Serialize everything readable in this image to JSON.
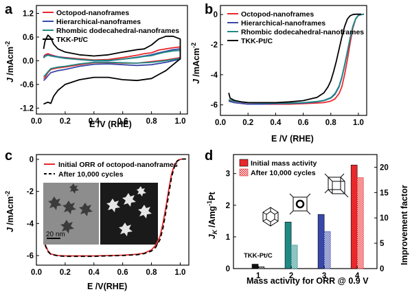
{
  "panels": {
    "a": "a",
    "b": "b",
    "c": "c",
    "d": "d"
  },
  "colors": {
    "octopod": "#e8282b",
    "hierarchical": "#3848a8",
    "rhombic": "#1f8a84",
    "tkk": "#000000"
  },
  "chart_data": [
    {
      "id": "a",
      "type": "line",
      "xlabel": "E /V (RHE)",
      "ylabel": "J /mAcm-2",
      "xlim": [
        0.0,
        1.05
      ],
      "ylim": [
        -1.35,
        1.4
      ],
      "xticks": [
        "0.0",
        "0.2",
        "0.4",
        "0.6",
        "0.8",
        "1.0"
      ],
      "yticks": [
        "1.2",
        "0.6",
        "0.0",
        "-0.6",
        "-1.2"
      ],
      "legend": [
        "Octopod-nanoframes",
        "Hierarchical-nanoframes",
        "Rhombic dodecahedral-nanoframes",
        "TKK-Pt/C"
      ],
      "series": [
        {
          "name": "Octopod-nanoframes",
          "color_key": "octopod",
          "x": [
            0.05,
            0.06,
            0.08,
            0.1,
            0.15,
            0.2,
            0.3,
            0.4,
            0.5,
            0.6,
            0.7,
            0.8,
            0.9,
            0.95,
            1.0,
            1.0,
            0.95,
            0.9,
            0.85,
            0.8,
            0.75,
            0.7,
            0.6,
            0.5,
            0.4,
            0.3,
            0.2,
            0.15,
            0.1,
            0.08,
            0.06,
            0.05
          ],
          "y": [
            -0.45,
            -0.42,
            -0.3,
            -0.22,
            -0.18,
            -0.16,
            -0.1,
            -0.05,
            -0.05,
            -0.06,
            -0.06,
            -0.02,
            0.02,
            0.05,
            0.08,
            0.35,
            0.33,
            0.3,
            0.27,
            0.2,
            0.18,
            0.14,
            0.08,
            0.03,
            0.02,
            0.05,
            0.08,
            0.1,
            0.15,
            0.18,
            0.15,
            0.1
          ]
        },
        {
          "name": "Hierarchical-nanoframes",
          "color_key": "hierarchical",
          "x": [
            0.05,
            0.06,
            0.08,
            0.1,
            0.15,
            0.2,
            0.3,
            0.4,
            0.5,
            0.6,
            0.7,
            0.8,
            0.9,
            0.95,
            1.0,
            1.0,
            0.95,
            0.9,
            0.85,
            0.8,
            0.75,
            0.7,
            0.6,
            0.5,
            0.4,
            0.3,
            0.2,
            0.15,
            0.1,
            0.08,
            0.06,
            0.05
          ],
          "y": [
            -0.5,
            -0.47,
            -0.38,
            -0.3,
            -0.25,
            -0.22,
            -0.14,
            -0.09,
            -0.08,
            -0.1,
            -0.12,
            -0.1,
            -0.04,
            0.0,
            0.04,
            0.3,
            0.28,
            0.24,
            0.2,
            0.15,
            0.12,
            0.09,
            0.04,
            0.0,
            0.0,
            0.03,
            0.07,
            0.1,
            0.13,
            0.15,
            0.12,
            0.08
          ]
        },
        {
          "name": "Rhombic dodecahedral-nanoframes",
          "color_key": "rhombic",
          "x": [
            0.05,
            0.06,
            0.08,
            0.1,
            0.15,
            0.2,
            0.3,
            0.4,
            0.5,
            0.6,
            0.7,
            0.8,
            0.9,
            0.95,
            1.0,
            1.0,
            0.95,
            0.9,
            0.85,
            0.8,
            0.75,
            0.7,
            0.6,
            0.5,
            0.4,
            0.3,
            0.2,
            0.15,
            0.1,
            0.08,
            0.06,
            0.05
          ],
          "y": [
            -0.4,
            -0.37,
            -0.28,
            -0.2,
            -0.16,
            -0.14,
            -0.08,
            -0.04,
            -0.04,
            -0.05,
            -0.06,
            -0.04,
            0.0,
            0.03,
            0.06,
            0.26,
            0.25,
            0.22,
            0.18,
            0.13,
            0.11,
            0.08,
            0.04,
            0.01,
            0.01,
            0.03,
            0.06,
            0.09,
            0.12,
            0.14,
            0.11,
            0.07
          ]
        },
        {
          "name": "TKK-Pt/C",
          "color_key": "tkk",
          "x": [
            0.05,
            0.06,
            0.08,
            0.1,
            0.12,
            0.15,
            0.2,
            0.3,
            0.4,
            0.5,
            0.6,
            0.7,
            0.8,
            0.85,
            0.9,
            0.95,
            1.0,
            1.0,
            0.95,
            0.9,
            0.85,
            0.8,
            0.75,
            0.7,
            0.6,
            0.5,
            0.4,
            0.3,
            0.2,
            0.15,
            0.12,
            0.1,
            0.08,
            0.06,
            0.05
          ],
          "y": [
            -1.1,
            -1.08,
            -1.05,
            -1.08,
            -0.9,
            -0.75,
            -0.6,
            -0.48,
            -0.42,
            -0.42,
            -0.48,
            -0.5,
            -0.45,
            -0.35,
            -0.25,
            -0.1,
            0.05,
            0.55,
            0.62,
            0.62,
            0.55,
            0.4,
            0.3,
            0.28,
            0.22,
            0.15,
            0.12,
            0.15,
            0.22,
            0.3,
            0.42,
            0.58,
            0.65,
            0.5,
            0.3
          ]
        }
      ]
    },
    {
      "id": "b",
      "type": "line",
      "xlabel": "E /V (RHE)",
      "ylabel": "J /mAcm-2",
      "xlim": [
        0.0,
        1.06
      ],
      "ylim": [
        -6.7,
        0.6
      ],
      "xticks": [
        "0.0",
        "0.2",
        "0.4",
        "0.6",
        "0.8",
        "1.0"
      ],
      "yticks": [
        "0",
        "-2",
        "-4",
        "-6"
      ],
      "legend": [
        "Octopod-nanoframes",
        "Hierarchical-nanoframes",
        "Rhombic dodecahedral-nanoframes",
        "TKK-Pt/C"
      ],
      "series": [
        {
          "name": "Octopod-nanoframes",
          "color_key": "octopod",
          "x": [
            0.06,
            0.1,
            0.2,
            0.3,
            0.4,
            0.5,
            0.6,
            0.7,
            0.75,
            0.8,
            0.83,
            0.86,
            0.88,
            0.9,
            0.92,
            0.94,
            0.96,
            0.98,
            1.0,
            1.02,
            1.04
          ],
          "y": [
            -5.7,
            -5.85,
            -5.95,
            -5.95,
            -5.95,
            -5.95,
            -5.92,
            -5.88,
            -5.85,
            -5.75,
            -5.6,
            -5.25,
            -4.8,
            -4.0,
            -3.0,
            -1.9,
            -0.9,
            -0.3,
            -0.05,
            0.0,
            0.02
          ]
        },
        {
          "name": "Hierarchical-nanoframes",
          "color_key": "hierarchical",
          "x": [
            0.06,
            0.1,
            0.2,
            0.3,
            0.4,
            0.5,
            0.6,
            0.7,
            0.75,
            0.8,
            0.83,
            0.86,
            0.88,
            0.9,
            0.92,
            0.94,
            0.96,
            0.98,
            1.0,
            1.02,
            1.04
          ],
          "y": [
            -5.75,
            -5.85,
            -5.95,
            -5.95,
            -5.92,
            -5.9,
            -5.88,
            -5.8,
            -5.72,
            -5.55,
            -5.3,
            -4.8,
            -4.2,
            -3.4,
            -2.5,
            -1.6,
            -0.8,
            -0.3,
            -0.06,
            0.0,
            0.02
          ]
        },
        {
          "name": "Rhombic dodecahedral-nanoframes",
          "color_key": "rhombic",
          "x": [
            0.06,
            0.1,
            0.2,
            0.3,
            0.4,
            0.5,
            0.6,
            0.7,
            0.75,
            0.8,
            0.83,
            0.86,
            0.88,
            0.9,
            0.92,
            0.94,
            0.96,
            0.98,
            1.0,
            1.02,
            1.04
          ],
          "y": [
            -5.65,
            -5.75,
            -5.85,
            -5.88,
            -5.88,
            -5.88,
            -5.85,
            -5.78,
            -5.7,
            -5.52,
            -5.25,
            -4.75,
            -4.15,
            -3.35,
            -2.45,
            -1.55,
            -0.78,
            -0.28,
            -0.05,
            0.0,
            0.02
          ]
        },
        {
          "name": "TKK-Pt/C",
          "color_key": "tkk",
          "x": [
            0.06,
            0.07,
            0.1,
            0.15,
            0.2,
            0.3,
            0.4,
            0.5,
            0.6,
            0.7,
            0.75,
            0.78,
            0.8,
            0.82,
            0.84,
            0.86,
            0.88,
            0.9,
            0.92,
            0.94,
            0.96,
            0.98,
            1.0,
            1.02
          ],
          "y": [
            -5.2,
            -5.55,
            -5.7,
            -5.8,
            -5.85,
            -5.85,
            -5.85,
            -5.8,
            -5.72,
            -5.5,
            -5.2,
            -4.8,
            -4.4,
            -3.8,
            -3.1,
            -2.3,
            -1.5,
            -0.8,
            -0.3,
            -0.08,
            0.0,
            0.02,
            0.02,
            0.02
          ]
        }
      ]
    },
    {
      "id": "c",
      "type": "line",
      "xlabel": "E /V(RHE)",
      "ylabel": "J /mAcm-2",
      "xlim": [
        0.0,
        1.06
      ],
      "ylim": [
        -6.6,
        0.3
      ],
      "xticks": [
        "0.0",
        "0.2",
        "0.4",
        "0.6",
        "0.8",
        "1.0"
      ],
      "yticks": [
        "0",
        "-2",
        "-4",
        "-6"
      ],
      "legend": [
        "Initial ORR of octopod-nanoframes",
        "After 10,000 cycles"
      ],
      "inset_scale": "20  nm",
      "series": [
        {
          "name": "Initial ORR of octopod-nanoframes",
          "color_key": "octopod",
          "style": "solid",
          "x": [
            0.06,
            0.08,
            0.1,
            0.15,
            0.2,
            0.3,
            0.4,
            0.5,
            0.6,
            0.7,
            0.75,
            0.8,
            0.83,
            0.86,
            0.88,
            0.9,
            0.92,
            0.94,
            0.96,
            0.98,
            1.0,
            1.02,
            1.04
          ],
          "y": [
            -5.3,
            -5.7,
            -5.9,
            -6.0,
            -6.02,
            -6.02,
            -6.02,
            -6.0,
            -5.98,
            -5.92,
            -5.85,
            -5.65,
            -5.35,
            -4.8,
            -4.0,
            -3.0,
            -1.9,
            -0.9,
            -0.35,
            -0.08,
            0.0,
            0.02,
            0.02
          ]
        },
        {
          "name": "After 10,000 cycles",
          "color_key": "tkk",
          "style": "dashed",
          "x": [
            0.06,
            0.08,
            0.1,
            0.15,
            0.2,
            0.3,
            0.4,
            0.5,
            0.6,
            0.7,
            0.75,
            0.8,
            0.83,
            0.86,
            0.88,
            0.9,
            0.92,
            0.94,
            0.96,
            0.98,
            1.0,
            1.02,
            1.04
          ],
          "y": [
            -5.35,
            -5.75,
            -5.92,
            -6.02,
            -6.05,
            -6.05,
            -6.05,
            -6.02,
            -6.0,
            -5.95,
            -5.88,
            -5.72,
            -5.48,
            -5.0,
            -4.3,
            -3.3,
            -2.2,
            -1.1,
            -0.45,
            -0.1,
            0.0,
            0.02,
            0.02
          ]
        }
      ]
    },
    {
      "id": "d",
      "type": "bar",
      "title": "",
      "xlabel": "Mass activity for ORR @ 0.9 V",
      "ylabel": "Jk /Amg-1Pt",
      "ylabel2": "Improvement factor",
      "categories": [
        "1",
        "2",
        "3",
        "4"
      ],
      "ylim": [
        0,
        3.6
      ],
      "ylim2": [
        0,
        22.5
      ],
      "yticks": [
        "0",
        "1",
        "2",
        "3"
      ],
      "yticks2": [
        "0",
        "5",
        "10",
        "15",
        "20"
      ],
      "legend": [
        "Initial mass activity",
        "After 10,000 cycles"
      ],
      "annotation": "TKK-Pt/C",
      "series": [
        {
          "name": "Initial mass activity",
          "values": [
            0.14,
            1.47,
            1.71,
            3.27
          ]
        },
        {
          "name": "After 10,000 cycles",
          "values": [
            0.06,
            0.74,
            1.17,
            2.87
          ]
        }
      ],
      "bar_colors": [
        "#111111",
        "#1f8a84",
        "#3848a8",
        "#e8282b"
      ]
    }
  ]
}
